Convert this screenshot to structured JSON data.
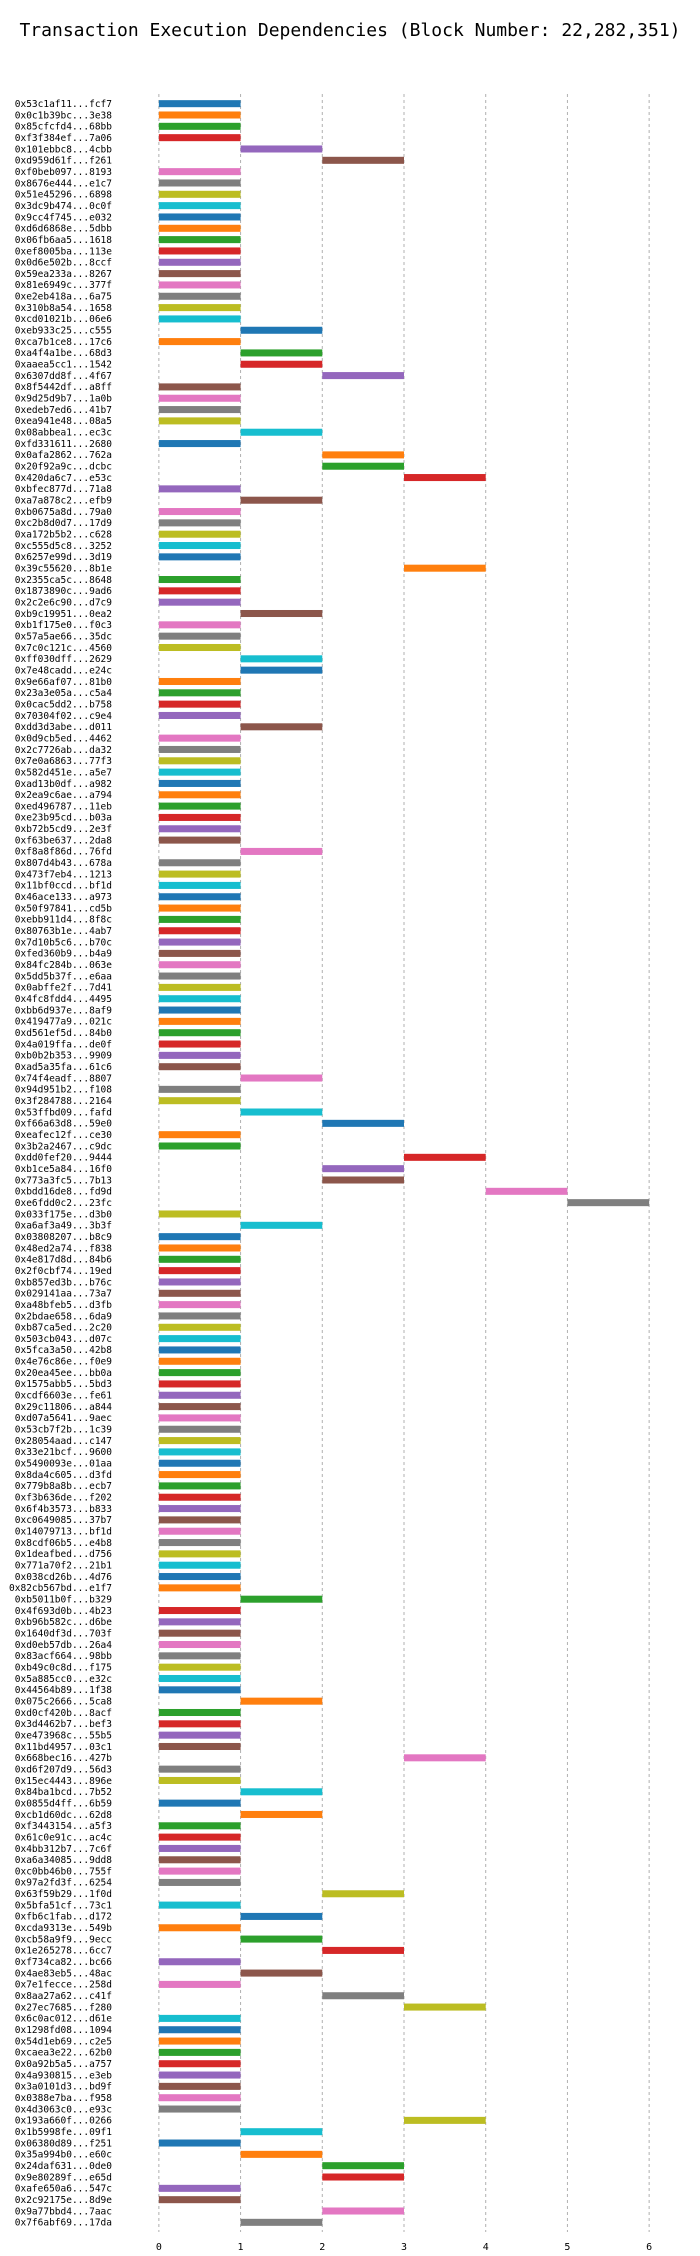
{
  "chart_data": {
    "type": "bar",
    "title": "Transaction Execution Dependencies (Block Number: 22,282,351)",
    "xlabel": "",
    "ylabel": "",
    "xlim": [
      -0.5,
      6.5
    ],
    "x_ticks": [
      0,
      1,
      2,
      3,
      4,
      5,
      6
    ],
    "grid": true,
    "palette": [
      "#1f77b4",
      "#ff7f0e",
      "#2ca02c",
      "#d62728",
      "#9467bd",
      "#8c564b",
      "#e377c2",
      "#7f7f7f",
      "#bcbd22",
      "#17becf"
    ],
    "transactions": [
      {
        "hash": "0x53c1af11...fcf7",
        "start": 0,
        "end": 1
      },
      {
        "hash": "0x0c1b39bc...3e38",
        "start": 0,
        "end": 1
      },
      {
        "hash": "0x85cfcfd4...68bb",
        "start": 0,
        "end": 1
      },
      {
        "hash": "0xf3f384ef...7a06",
        "start": 0,
        "end": 1
      },
      {
        "hash": "0x101ebbc8...4cbb",
        "start": 1,
        "end": 2
      },
      {
        "hash": "0xd959d61f...f261",
        "start": 2,
        "end": 3
      },
      {
        "hash": "0xf0beb097...8193",
        "start": 0,
        "end": 1
      },
      {
        "hash": "0x8676e444...e1c7",
        "start": 0,
        "end": 1
      },
      {
        "hash": "0x51e45296...6898",
        "start": 0,
        "end": 1
      },
      {
        "hash": "0x3dc9b474...0c0f",
        "start": 0,
        "end": 1
      },
      {
        "hash": "0x9cc4f745...e032",
        "start": 0,
        "end": 1
      },
      {
        "hash": "0xd6d6868e...5dbb",
        "start": 0,
        "end": 1
      },
      {
        "hash": "0x06fb6aa5...1618",
        "start": 0,
        "end": 1
      },
      {
        "hash": "0xef8005ba...113e",
        "start": 0,
        "end": 1
      },
      {
        "hash": "0x0d6e502b...8ccf",
        "start": 0,
        "end": 1
      },
      {
        "hash": "0x59ea233a...8267",
        "start": 0,
        "end": 1
      },
      {
        "hash": "0x81e6949c...377f",
        "start": 0,
        "end": 1
      },
      {
        "hash": "0xe2eb418a...6a75",
        "start": 0,
        "end": 1
      },
      {
        "hash": "0x310b8a54...1658",
        "start": 0,
        "end": 1
      },
      {
        "hash": "0xcd01021b...06e6",
        "start": 0,
        "end": 1
      },
      {
        "hash": "0xeb933c25...c555",
        "start": 1,
        "end": 2
      },
      {
        "hash": "0xca7b1ce8...17c6",
        "start": 0,
        "end": 1
      },
      {
        "hash": "0xa4f4a1be...68d3",
        "start": 1,
        "end": 2
      },
      {
        "hash": "0xaaea5cc1...1542",
        "start": 1,
        "end": 2
      },
      {
        "hash": "0x6307dd8f...4f67",
        "start": 2,
        "end": 3
      },
      {
        "hash": "0x8f5442df...a8ff",
        "start": 0,
        "end": 1
      },
      {
        "hash": "0x9d25d9b7...1a0b",
        "start": 0,
        "end": 1
      },
      {
        "hash": "0xedeb7ed6...41b7",
        "start": 0,
        "end": 1
      },
      {
        "hash": "0xea941e48...08a5",
        "start": 0,
        "end": 1
      },
      {
        "hash": "0x08abbea1...ec3c",
        "start": 1,
        "end": 2
      },
      {
        "hash": "0xfd331611...2680",
        "start": 0,
        "end": 1
      },
      {
        "hash": "0x0afa2862...762a",
        "start": 2,
        "end": 3
      },
      {
        "hash": "0x20f92a9c...dcbc",
        "start": 2,
        "end": 3
      },
      {
        "hash": "0x420da6c7...e53c",
        "start": 3,
        "end": 4
      },
      {
        "hash": "0xbfec877d...71a8",
        "start": 0,
        "end": 1
      },
      {
        "hash": "0xa7a878c2...efb9",
        "start": 1,
        "end": 2
      },
      {
        "hash": "0xb0675a8d...79a0",
        "start": 0,
        "end": 1
      },
      {
        "hash": "0xc2b8d0d7...17d9",
        "start": 0,
        "end": 1
      },
      {
        "hash": "0xa172b5b2...c628",
        "start": 0,
        "end": 1
      },
      {
        "hash": "0xc555d5c8...3252",
        "start": 0,
        "end": 1
      },
      {
        "hash": "0x6257e99d...3d19",
        "start": 0,
        "end": 1
      },
      {
        "hash": "0x39c55620...8b1e",
        "start": 3,
        "end": 4
      },
      {
        "hash": "0x2355ca5c...8648",
        "start": 0,
        "end": 1
      },
      {
        "hash": "0x1873890c...9ad6",
        "start": 0,
        "end": 1
      },
      {
        "hash": "0x2c2e6c90...d7c9",
        "start": 0,
        "end": 1
      },
      {
        "hash": "0xb9c19951...0ea2",
        "start": 1,
        "end": 2
      },
      {
        "hash": "0xb1f175e0...f0c3",
        "start": 0,
        "end": 1
      },
      {
        "hash": "0x57a5ae66...35dc",
        "start": 0,
        "end": 1
      },
      {
        "hash": "0x7c0c121c...4560",
        "start": 0,
        "end": 1
      },
      {
        "hash": "0xff030dff...2629",
        "start": 1,
        "end": 2
      },
      {
        "hash": "0x7e48cadd...e24c",
        "start": 1,
        "end": 2
      },
      {
        "hash": "0x9e66af07...81b0",
        "start": 0,
        "end": 1
      },
      {
        "hash": "0x23a3e05a...c5a4",
        "start": 0,
        "end": 1
      },
      {
        "hash": "0x0cac5dd2...b758",
        "start": 0,
        "end": 1
      },
      {
        "hash": "0x70304f02...c9e4",
        "start": 0,
        "end": 1
      },
      {
        "hash": "0xdd3d3abe...d011",
        "start": 1,
        "end": 2
      },
      {
        "hash": "0x0d9cb5ed...4462",
        "start": 0,
        "end": 1
      },
      {
        "hash": "0x2c7726ab...da32",
        "start": 0,
        "end": 1
      },
      {
        "hash": "0x7e0a6863...77f3",
        "start": 0,
        "end": 1
      },
      {
        "hash": "0x582d451e...a5e7",
        "start": 0,
        "end": 1
      },
      {
        "hash": "0xad13b0df...a982",
        "start": 0,
        "end": 1
      },
      {
        "hash": "0x2ea9c6ae...a794",
        "start": 0,
        "end": 1
      },
      {
        "hash": "0xed496787...11eb",
        "start": 0,
        "end": 1
      },
      {
        "hash": "0xe23b95cd...b03a",
        "start": 0,
        "end": 1
      },
      {
        "hash": "0xb72b5cd9...2e3f",
        "start": 0,
        "end": 1
      },
      {
        "hash": "0xf63be637...2da8",
        "start": 0,
        "end": 1
      },
      {
        "hash": "0xf8a8f86d...76fd",
        "start": 1,
        "end": 2
      },
      {
        "hash": "0x807d4b43...678a",
        "start": 0,
        "end": 1
      },
      {
        "hash": "0x473f7eb4...1213",
        "start": 0,
        "end": 1
      },
      {
        "hash": "0x11bf0ccd...bf1d",
        "start": 0,
        "end": 1
      },
      {
        "hash": "0x46ace133...a973",
        "start": 0,
        "end": 1
      },
      {
        "hash": "0x50f97841...cd5b",
        "start": 0,
        "end": 1
      },
      {
        "hash": "0xebb911d4...8f8c",
        "start": 0,
        "end": 1
      },
      {
        "hash": "0x80763b1e...4ab7",
        "start": 0,
        "end": 1
      },
      {
        "hash": "0x7d10b5c6...b70c",
        "start": 0,
        "end": 1
      },
      {
        "hash": "0xfed360b9...b4a9",
        "start": 0,
        "end": 1
      },
      {
        "hash": "0x84fc284b...063e",
        "start": 0,
        "end": 1
      },
      {
        "hash": "0x5dd5b37f...e6aa",
        "start": 0,
        "end": 1
      },
      {
        "hash": "0x0abffe2f...7d41",
        "start": 0,
        "end": 1
      },
      {
        "hash": "0x4fc8fdd4...4495",
        "start": 0,
        "end": 1
      },
      {
        "hash": "0xbb6d937e...8af9",
        "start": 0,
        "end": 1
      },
      {
        "hash": "0x419477a9...021c",
        "start": 0,
        "end": 1
      },
      {
        "hash": "0xd561ef5d...84b0",
        "start": 0,
        "end": 1
      },
      {
        "hash": "0x4a019ffa...de0f",
        "start": 0,
        "end": 1
      },
      {
        "hash": "0xb0b2b353...9909",
        "start": 0,
        "end": 1
      },
      {
        "hash": "0xad5a35fa...61c6",
        "start": 0,
        "end": 1
      },
      {
        "hash": "0x74f4eadf...8807",
        "start": 1,
        "end": 2
      },
      {
        "hash": "0x94d951b2...f108",
        "start": 0,
        "end": 1
      },
      {
        "hash": "0x3f284788...2164",
        "start": 0,
        "end": 1
      },
      {
        "hash": "0x53ffbd09...fafd",
        "start": 1,
        "end": 2
      },
      {
        "hash": "0xf66a63d8...59e0",
        "start": 2,
        "end": 3
      },
      {
        "hash": "0xeafec12f...ce30",
        "start": 0,
        "end": 1
      },
      {
        "hash": "0x3b2a2467...c9dc",
        "start": 0,
        "end": 1
      },
      {
        "hash": "0xdd0fef20...9444",
        "start": 3,
        "end": 4
      },
      {
        "hash": "0xb1ce5a84...16f0",
        "start": 2,
        "end": 3
      },
      {
        "hash": "0x773a3fc5...7b13",
        "start": 2,
        "end": 3
      },
      {
        "hash": "0xbdd16de8...fd9d",
        "start": 4,
        "end": 5
      },
      {
        "hash": "0xe6fdd0c2...23fc",
        "start": 5,
        "end": 6
      },
      {
        "hash": "0x033f175e...d3b0",
        "start": 0,
        "end": 1
      },
      {
        "hash": "0xa6af3a49...3b3f",
        "start": 1,
        "end": 2
      },
      {
        "hash": "0x03808207...b8c9",
        "start": 0,
        "end": 1
      },
      {
        "hash": "0x48ed2a74...f838",
        "start": 0,
        "end": 1
      },
      {
        "hash": "0x4e817d8d...84b6",
        "start": 0,
        "end": 1
      },
      {
        "hash": "0x2f0cbf74...19ed",
        "start": 0,
        "end": 1
      },
      {
        "hash": "0xb857ed3b...b76c",
        "start": 0,
        "end": 1
      },
      {
        "hash": "0x029141aa...73a7",
        "start": 0,
        "end": 1
      },
      {
        "hash": "0xa48bfeb5...d3fb",
        "start": 0,
        "end": 1
      },
      {
        "hash": "0x2bdae658...6da9",
        "start": 0,
        "end": 1
      },
      {
        "hash": "0xb87ca5ed...2c20",
        "start": 0,
        "end": 1
      },
      {
        "hash": "0x503cb043...d07c",
        "start": 0,
        "end": 1
      },
      {
        "hash": "0x5fca3a50...42b8",
        "start": 0,
        "end": 1
      },
      {
        "hash": "0x4e76c86e...f0e9",
        "start": 0,
        "end": 1
      },
      {
        "hash": "0x20ea45ee...bb0a",
        "start": 0,
        "end": 1
      },
      {
        "hash": "0x1575abb5...5bd3",
        "start": 0,
        "end": 1
      },
      {
        "hash": "0xcdf6603e...fe61",
        "start": 0,
        "end": 1
      },
      {
        "hash": "0x29c11806...a844",
        "start": 0,
        "end": 1
      },
      {
        "hash": "0xd07a5641...9aec",
        "start": 0,
        "end": 1
      },
      {
        "hash": "0x53cb7f2b...1c39",
        "start": 0,
        "end": 1
      },
      {
        "hash": "0x28054aad...c147",
        "start": 0,
        "end": 1
      },
      {
        "hash": "0x33e21bcf...9600",
        "start": 0,
        "end": 1
      },
      {
        "hash": "0x5490093e...01aa",
        "start": 0,
        "end": 1
      },
      {
        "hash": "0x8da4c605...d3fd",
        "start": 0,
        "end": 1
      },
      {
        "hash": "0x779b8a8b...ecb7",
        "start": 0,
        "end": 1
      },
      {
        "hash": "0xf3b636de...f202",
        "start": 0,
        "end": 1
      },
      {
        "hash": "0x6f4b3573...b833",
        "start": 0,
        "end": 1
      },
      {
        "hash": "0xc0649085...37b7",
        "start": 0,
        "end": 1
      },
      {
        "hash": "0x14079713...bf1d",
        "start": 0,
        "end": 1
      },
      {
        "hash": "0x8cdf06b5...e4b8",
        "start": 0,
        "end": 1
      },
      {
        "hash": "0x1deafbed...d756",
        "start": 0,
        "end": 1
      },
      {
        "hash": "0x771a70f2...21b1",
        "start": 0,
        "end": 1
      },
      {
        "hash": "0x038cd26b...4d76",
        "start": 0,
        "end": 1
      },
      {
        "hash": "0x82cb567bd...e1f7",
        "start": 0,
        "end": 1
      },
      {
        "hash": "0xb5011b0f...b329",
        "start": 1,
        "end": 2
      },
      {
        "hash": "0x4f693d0b...4b23",
        "start": 0,
        "end": 1
      },
      {
        "hash": "0xb96b582c...d6be",
        "start": 0,
        "end": 1
      },
      {
        "hash": "0x1640df3d...703f",
        "start": 0,
        "end": 1
      },
      {
        "hash": "0xd0eb57db...26a4",
        "start": 0,
        "end": 1
      },
      {
        "hash": "0x83acf664...98bb",
        "start": 0,
        "end": 1
      },
      {
        "hash": "0xb49c0c8d...f175",
        "start": 0,
        "end": 1
      },
      {
        "hash": "0x5a885cc0...e32c",
        "start": 0,
        "end": 1
      },
      {
        "hash": "0x44564b89...1f38",
        "start": 0,
        "end": 1
      },
      {
        "hash": "0x075c2666...5ca8",
        "start": 1,
        "end": 2
      },
      {
        "hash": "0xd0cf420b...8acf",
        "start": 0,
        "end": 1
      },
      {
        "hash": "0x3d4462b7...bef3",
        "start": 0,
        "end": 1
      },
      {
        "hash": "0xe473968c...55b5",
        "start": 0,
        "end": 1
      },
      {
        "hash": "0x11bd4957...03c1",
        "start": 0,
        "end": 1
      },
      {
        "hash": "0x668bec16...427b",
        "start": 3,
        "end": 4
      },
      {
        "hash": "0xd6f207d9...56d3",
        "start": 0,
        "end": 1
      },
      {
        "hash": "0x15ec4443...896e",
        "start": 0,
        "end": 1
      },
      {
        "hash": "0x84ba1bcd...7b52",
        "start": 1,
        "end": 2
      },
      {
        "hash": "0x0855d4ff...6b59",
        "start": 0,
        "end": 1
      },
      {
        "hash": "0xcb1d60dc...62d8",
        "start": 1,
        "end": 2
      },
      {
        "hash": "0xf3443154...a5f3",
        "start": 0,
        "end": 1
      },
      {
        "hash": "0x61c0e91c...ac4c",
        "start": 0,
        "end": 1
      },
      {
        "hash": "0x4bb312b7...7c6f",
        "start": 0,
        "end": 1
      },
      {
        "hash": "0xa6a34085...9dd8",
        "start": 0,
        "end": 1
      },
      {
        "hash": "0xc0bb46b0...755f",
        "start": 0,
        "end": 1
      },
      {
        "hash": "0x97a2fd3f...6254",
        "start": 0,
        "end": 1
      },
      {
        "hash": "0x63f59b29...1f0d",
        "start": 2,
        "end": 3
      },
      {
        "hash": "0x5bfa51cf...73c1",
        "start": 0,
        "end": 1
      },
      {
        "hash": "0xfb6c1fab...d172",
        "start": 1,
        "end": 2
      },
      {
        "hash": "0xcda9313e...549b",
        "start": 0,
        "end": 1
      },
      {
        "hash": "0xcb58a9f9...9ecc",
        "start": 1,
        "end": 2
      },
      {
        "hash": "0x1e265278...6cc7",
        "start": 2,
        "end": 3
      },
      {
        "hash": "0xf734ca82...bc66",
        "start": 0,
        "end": 1
      },
      {
        "hash": "0x4ae83eb5...48ac",
        "start": 1,
        "end": 2
      },
      {
        "hash": "0x7e1fecce...258d",
        "start": 0,
        "end": 1
      },
      {
        "hash": "0x8aa27a62...c41f",
        "start": 2,
        "end": 3
      },
      {
        "hash": "0x27ec7685...f280",
        "start": 3,
        "end": 4
      },
      {
        "hash": "0x6c0ac012...d61e",
        "start": 0,
        "end": 1
      },
      {
        "hash": "0x1298fd08...1094",
        "start": 0,
        "end": 1
      },
      {
        "hash": "0x54d1eb69...c2e5",
        "start": 0,
        "end": 1
      },
      {
        "hash": "0xcaea3e22...62b0",
        "start": 0,
        "end": 1
      },
      {
        "hash": "0x0a92b5a5...a757",
        "start": 0,
        "end": 1
      },
      {
        "hash": "0x4a930815...e3eb",
        "start": 0,
        "end": 1
      },
      {
        "hash": "0x3a0101d3...bd9f",
        "start": 0,
        "end": 1
      },
      {
        "hash": "0x0388e7ba...f958",
        "start": 0,
        "end": 1
      },
      {
        "hash": "0x4d3063c0...e93c",
        "start": 0,
        "end": 1
      },
      {
        "hash": "0x193a660f...0266",
        "start": 3,
        "end": 4
      },
      {
        "hash": "0x1b5998fe...09f1",
        "start": 1,
        "end": 2
      },
      {
        "hash": "0x06380d89...f251",
        "start": 0,
        "end": 1
      },
      {
        "hash": "0x35a994b0...e60c",
        "start": 1,
        "end": 2
      },
      {
        "hash": "0x24daf631...0de0",
        "start": 2,
        "end": 3
      },
      {
        "hash": "0x9e80289f...e65d",
        "start": 2,
        "end": 3
      },
      {
        "hash": "0xafe650a6...547c",
        "start": 0,
        "end": 1
      },
      {
        "hash": "0x2c92175e...8d9e",
        "start": 0,
        "end": 1
      },
      {
        "hash": "0x9a77bbd4...7aac",
        "start": 2,
        "end": 3
      },
      {
        "hash": "0x7f6abf69...17da",
        "start": 1,
        "end": 2
      }
    ]
  }
}
